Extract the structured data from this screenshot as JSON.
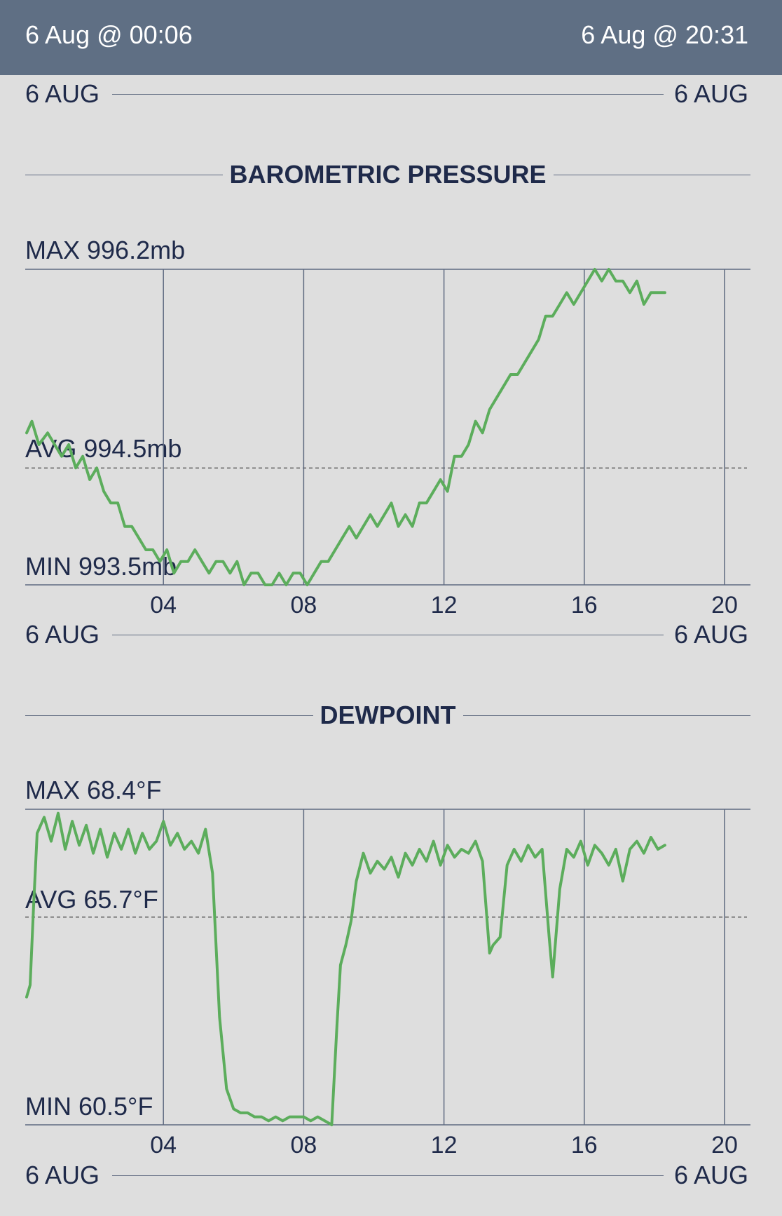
{
  "header": {
    "start": "6 Aug @ 00:06",
    "end": "6 Aug @ 20:31"
  },
  "colors": {
    "header_bg": "#5f6f84",
    "line": "#5cad5c",
    "grid": "#5f6a80",
    "background": "#dedede",
    "text": "#1f2a4a"
  },
  "date_rows": [
    {
      "left": "6 AUG",
      "right": "6 AUG"
    },
    {
      "left": "6 AUG",
      "right": "6 AUG"
    },
    {
      "left": "6 AUG",
      "right": "6 AUG"
    }
  ],
  "chart_data": [
    {
      "type": "line",
      "title": "BAROMETRIC PRESSURE",
      "max_label": "MAX 996.2mb",
      "avg_label": "AVG 994.5mb",
      "min_label": "MIN 993.5mb",
      "avg_value": 994.5,
      "ylim": [
        993.5,
        996.2
      ],
      "xlim": [
        0.1,
        20.2
      ],
      "x_ticks": [
        "04",
        "08",
        "12",
        "16",
        "20"
      ],
      "x_tick_values": [
        4,
        8,
        12,
        16,
        20
      ],
      "grid": true,
      "series": [
        {
          "x": [
            0.1,
            0.25,
            0.45,
            0.7,
            0.9,
            1.1,
            1.3,
            1.5,
            1.7,
            1.9,
            2.1,
            2.3,
            2.5,
            2.7,
            2.9,
            3.1,
            3.3,
            3.5,
            3.7,
            3.9,
            4.1,
            4.3,
            4.5,
            4.7,
            4.9,
            5.1,
            5.3,
            5.5,
            5.7,
            5.9,
            6.1,
            6.3,
            6.5,
            6.7,
            6.9,
            7.1,
            7.3,
            7.5,
            7.7,
            7.9,
            8.1,
            8.3,
            8.5,
            8.7,
            8.9,
            9.1,
            9.3,
            9.5,
            9.7,
            9.9,
            10.1,
            10.3,
            10.5,
            10.7,
            10.9,
            11.1,
            11.3,
            11.5,
            11.7,
            11.9,
            12.1,
            12.3,
            12.5,
            12.7,
            12.9,
            13.1,
            13.3,
            13.5,
            13.7,
            13.9,
            14.1,
            14.3,
            14.5,
            14.7,
            14.9,
            15.1,
            15.3,
            15.5,
            15.7,
            15.9,
            16.1,
            16.3,
            16.5,
            16.7,
            16.9,
            17.1,
            17.3,
            17.5,
            17.7,
            17.9,
            18.1,
            18.3
          ],
          "y": [
            994.8,
            994.9,
            994.7,
            994.8,
            994.7,
            994.6,
            994.7,
            994.5,
            994.6,
            994.4,
            994.5,
            994.3,
            994.2,
            994.2,
            994.0,
            994.0,
            993.9,
            993.8,
            993.8,
            993.7,
            993.8,
            993.6,
            993.7,
            993.7,
            993.8,
            993.7,
            993.6,
            993.7,
            993.7,
            993.6,
            993.7,
            993.5,
            993.6,
            993.6,
            993.5,
            993.5,
            993.6,
            993.5,
            993.6,
            993.6,
            993.5,
            993.6,
            993.7,
            993.7,
            993.8,
            993.9,
            994.0,
            993.9,
            994.0,
            994.1,
            994.0,
            994.1,
            994.2,
            994.0,
            994.1,
            994.0,
            994.2,
            994.2,
            994.3,
            994.4,
            994.3,
            994.6,
            994.6,
            994.7,
            994.9,
            994.8,
            995.0,
            995.1,
            995.2,
            995.3,
            995.3,
            995.4,
            995.5,
            995.6,
            995.8,
            995.8,
            995.9,
            996.0,
            995.9,
            996.0,
            996.1,
            996.2,
            996.1,
            996.2,
            996.1,
            996.1,
            996.0,
            996.1,
            995.9,
            996.0,
            996.0,
            996.0
          ]
        }
      ]
    },
    {
      "type": "line",
      "title": "DEWPOINT",
      "max_label": "MAX 68.4°F",
      "avg_label": "AVG 65.7°F",
      "min_label": "MIN 60.5°F",
      "avg_value": 65.7,
      "ylim": [
        60.5,
        68.4
      ],
      "xlim": [
        0.1,
        20.2
      ],
      "x_ticks": [
        "04",
        "08",
        "12",
        "16",
        "20"
      ],
      "x_tick_values": [
        4,
        8,
        12,
        16,
        20
      ],
      "grid": true,
      "series": [
        {
          "x": [
            0.1,
            0.2,
            0.3,
            0.4,
            0.6,
            0.8,
            1.0,
            1.2,
            1.4,
            1.6,
            1.8,
            2.0,
            2.2,
            2.4,
            2.6,
            2.8,
            3.0,
            3.2,
            3.4,
            3.6,
            3.8,
            4.0,
            4.2,
            4.4,
            4.6,
            4.8,
            5.0,
            5.2,
            5.4,
            5.6,
            5.8,
            6.0,
            6.2,
            6.4,
            6.6,
            6.8,
            7.0,
            7.2,
            7.4,
            7.6,
            7.8,
            8.0,
            8.2,
            8.4,
            8.6,
            8.8,
            8.95,
            9.05,
            9.2,
            9.35,
            9.5,
            9.7,
            9.9,
            10.1,
            10.3,
            10.5,
            10.7,
            10.9,
            11.1,
            11.3,
            11.5,
            11.7,
            11.9,
            12.1,
            12.3,
            12.5,
            12.7,
            12.9,
            13.1,
            13.3,
            13.4,
            13.6,
            13.8,
            14.0,
            14.2,
            14.4,
            14.6,
            14.8,
            15.0,
            15.1,
            15.3,
            15.5,
            15.7,
            15.9,
            16.1,
            16.3,
            16.5,
            16.7,
            16.9,
            17.1,
            17.3,
            17.5,
            17.7,
            17.9,
            18.1,
            18.3
          ],
          "y": [
            63.7,
            64.0,
            66.0,
            67.8,
            68.2,
            67.6,
            68.3,
            67.4,
            68.1,
            67.5,
            68.0,
            67.3,
            67.9,
            67.2,
            67.8,
            67.4,
            67.9,
            67.3,
            67.8,
            67.4,
            67.6,
            68.1,
            67.5,
            67.8,
            67.4,
            67.6,
            67.3,
            67.9,
            66.8,
            63.2,
            61.4,
            60.9,
            60.8,
            60.8,
            60.7,
            60.7,
            60.6,
            60.7,
            60.6,
            60.7,
            60.7,
            60.7,
            60.6,
            60.7,
            60.6,
            60.5,
            63.0,
            64.5,
            65.0,
            65.6,
            66.6,
            67.3,
            66.8,
            67.1,
            66.9,
            67.2,
            66.7,
            67.3,
            67.0,
            67.4,
            67.1,
            67.6,
            67.0,
            67.5,
            67.2,
            67.4,
            67.3,
            67.6,
            67.1,
            64.8,
            65.0,
            65.2,
            67.0,
            67.4,
            67.1,
            67.5,
            67.2,
            67.4,
            65.2,
            64.2,
            66.4,
            67.4,
            67.2,
            67.6,
            67.0,
            67.5,
            67.3,
            67.0,
            67.4,
            66.6,
            67.4,
            67.6,
            67.3,
            67.7,
            67.4,
            67.5
          ]
        }
      ]
    }
  ]
}
